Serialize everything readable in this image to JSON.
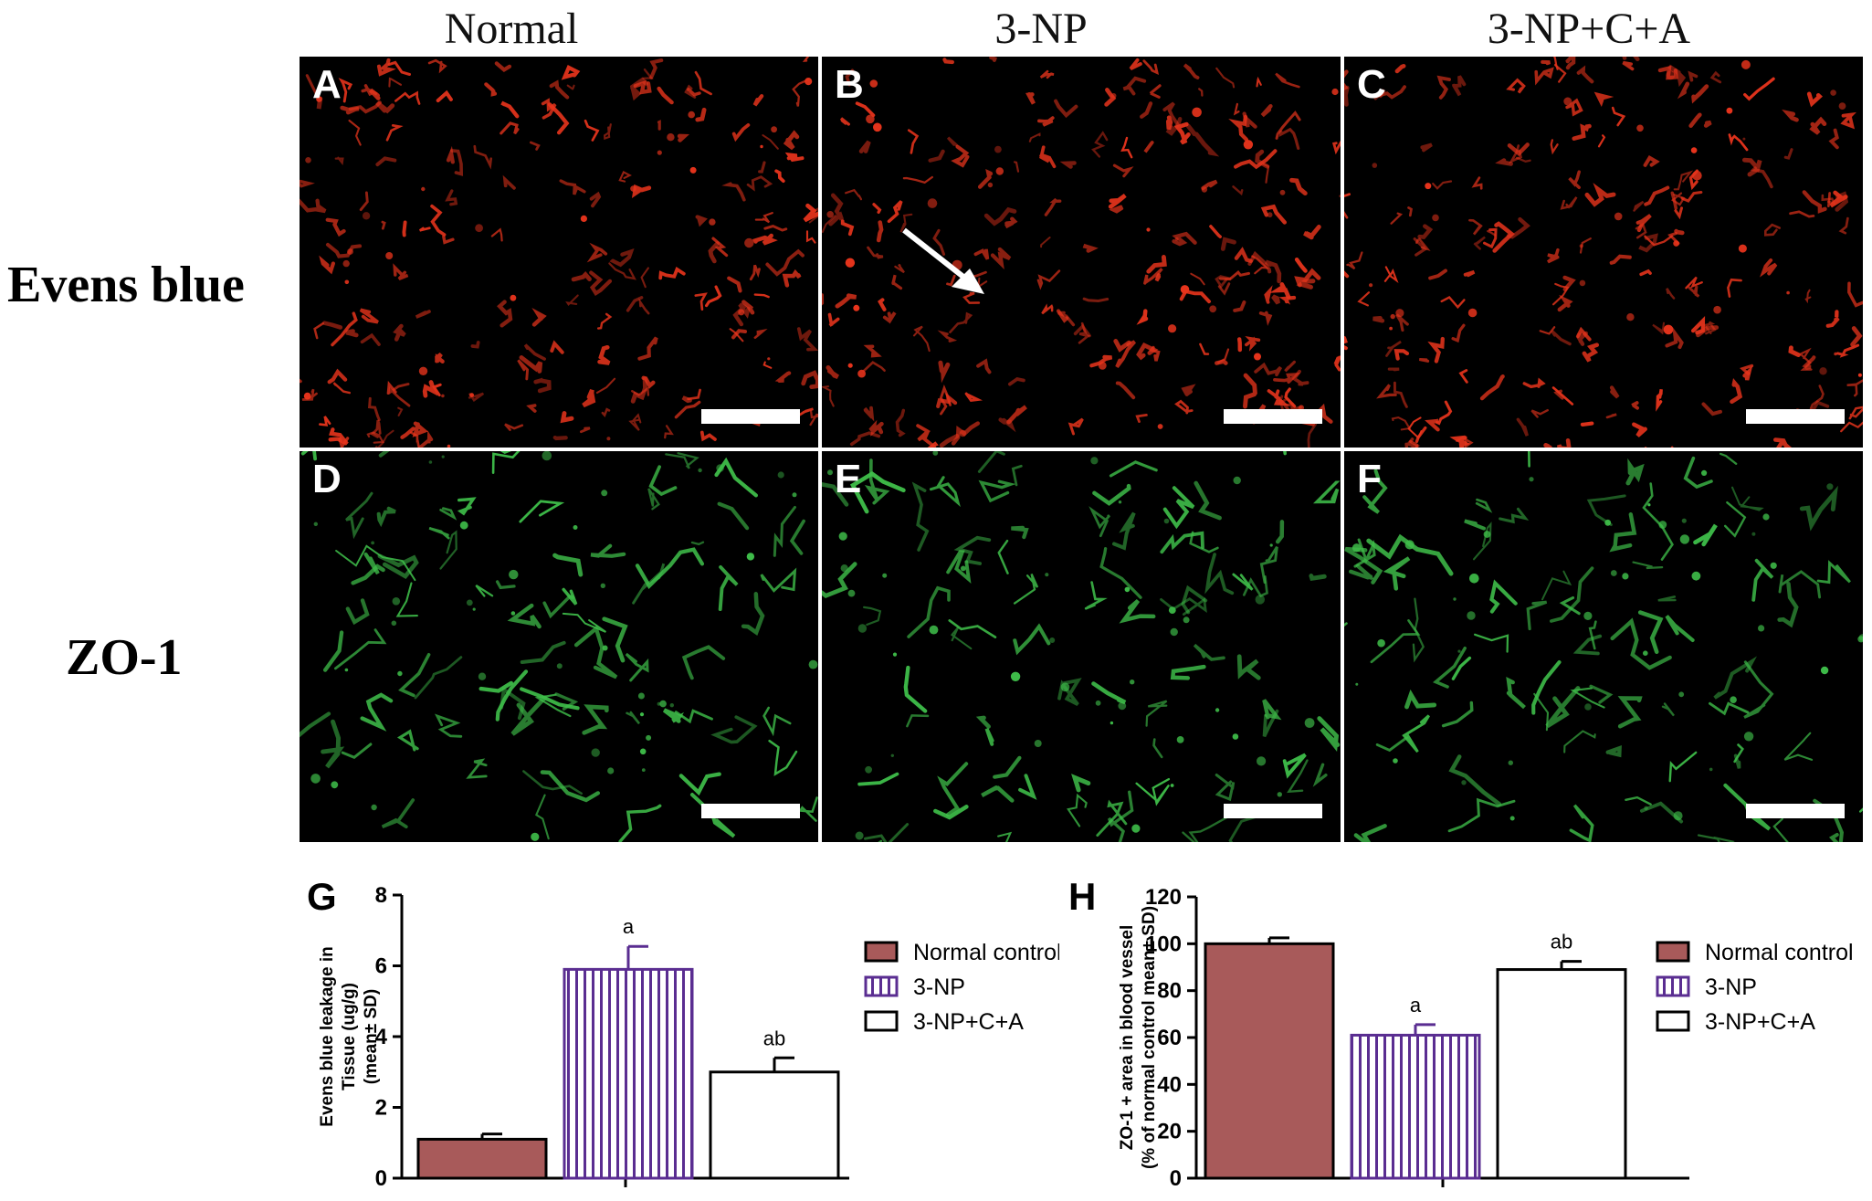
{
  "columns": [
    "Normal",
    "3-NP",
    "3-NP+C+A"
  ],
  "rows": [
    "Evens blue",
    "ZO-1"
  ],
  "panels": [
    {
      "letter": "A",
      "stain": "red"
    },
    {
      "letter": "B",
      "stain": "red"
    },
    {
      "letter": "C",
      "stain": "red"
    },
    {
      "letter": "D",
      "stain": "green"
    },
    {
      "letter": "E",
      "stain": "green"
    },
    {
      "letter": "F",
      "stain": "green"
    }
  ],
  "colors": {
    "normal_control": "#a85a5a",
    "np_stripes": "#5a2d91",
    "red_stain": "#e8341c",
    "green_stain": "#3fbf4a"
  },
  "chart_data": [
    {
      "type": "bar",
      "panel_letter": "G",
      "ylabel_lines": [
        "Evens blue leakage in",
        "Tissue (ug/g)",
        "(mean± SD)"
      ],
      "ylim": [
        0,
        8
      ],
      "yticks": [
        0,
        2,
        4,
        6,
        8
      ],
      "series": [
        {
          "name": "Normal control",
          "value": 1.1,
          "error": 0.15,
          "annotation": ""
        },
        {
          "name": "3-NP",
          "value": 5.9,
          "error": 0.65,
          "annotation": "a"
        },
        {
          "name": "3-NP+C+A",
          "value": 3.0,
          "error": 0.4,
          "annotation": "ab"
        }
      ]
    },
    {
      "type": "bar",
      "panel_letter": "H",
      "ylabel_lines": [
        "ZO-1 + area in blood vessel",
        "(% of normal control mean± SD)"
      ],
      "ylim": [
        0,
        120
      ],
      "yticks": [
        0,
        20,
        40,
        60,
        80,
        100,
        120
      ],
      "series": [
        {
          "name": "Normal control",
          "value": 100,
          "error": 2.5,
          "annotation": ""
        },
        {
          "name": "3-NP",
          "value": 61,
          "error": 4.5,
          "annotation": "a"
        },
        {
          "name": "3-NP+C+A",
          "value": 89,
          "error": 3.5,
          "annotation": "ab"
        }
      ]
    }
  ]
}
